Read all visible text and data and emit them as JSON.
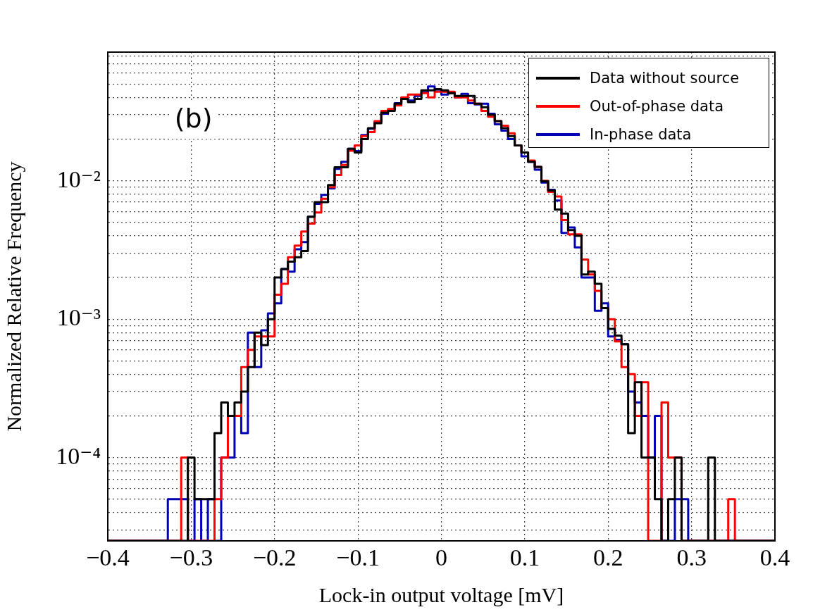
{
  "chart_data": {
    "type": "histogram",
    "xlabel": "Lock-in output voltage [mV]",
    "ylabel": "Normalized Relative Frequency",
    "annotations": [
      "(b)"
    ],
    "log": "y",
    "grid": true,
    "legend": "top right",
    "xlim": [
      -0.4,
      0.4
    ],
    "xticks": [
      {
        "value": -0.4,
        "label": "−0.4"
      },
      {
        "value": -0.3,
        "label": "−0.3"
      },
      {
        "value": -0.2,
        "label": "−0.2"
      },
      {
        "value": -0.1,
        "label": "−0.1"
      },
      {
        "value": 0,
        "label": "0"
      },
      {
        "value": 0.1,
        "label": "0.1"
      },
      {
        "value": 0.2,
        "label": "0.2"
      },
      {
        "value": 0.3,
        "label": "0.3"
      },
      {
        "value": 0.4,
        "label": "0.4"
      }
    ],
    "ylim": [
      2.5e-05,
      0.085
    ],
    "yticks": [
      {
        "value": 3e-05,
        "label": null
      },
      {
        "value": 4e-05,
        "label": null
      },
      {
        "value": 5e-05,
        "label": null
      },
      {
        "value": 6e-05,
        "label": null
      },
      {
        "value": 7e-05,
        "label": null
      },
      {
        "value": 8e-05,
        "label": null
      },
      {
        "value": 9e-05,
        "label": null
      },
      {
        "value": 0.0001,
        "label": "10⁻⁴"
      },
      {
        "value": 0.0002,
        "label": null
      },
      {
        "value": 0.0003,
        "label": null
      },
      {
        "value": 0.0004,
        "label": null
      },
      {
        "value": 0.0005,
        "label": null
      },
      {
        "value": 0.0006,
        "label": null
      },
      {
        "value": 0.0007,
        "label": null
      },
      {
        "value": 0.0008,
        "label": null
      },
      {
        "value": 0.0009,
        "label": null
      },
      {
        "value": 0.001,
        "label": "10⁻³"
      },
      {
        "value": 0.002,
        "label": null
      },
      {
        "value": 0.003,
        "label": null
      },
      {
        "value": 0.004,
        "label": null
      },
      {
        "value": 0.005,
        "label": null
      },
      {
        "value": 0.006,
        "label": null
      },
      {
        "value": 0.007,
        "label": null
      },
      {
        "value": 0.008,
        "label": null
      },
      {
        "value": 0.009,
        "label": null
      },
      {
        "value": 0.01,
        "label": "10⁻²"
      },
      {
        "value": 0.02,
        "label": null
      },
      {
        "value": 0.03,
        "label": null
      },
      {
        "value": 0.04,
        "label": null
      },
      {
        "value": 0.05,
        "label": null
      },
      {
        "value": 0.06,
        "label": null
      },
      {
        "value": 0.07,
        "label": null
      },
      {
        "value": 0.08,
        "label": null
      }
    ],
    "bins": [
      -0.4,
      -0.392,
      -0.384,
      -0.376,
      -0.368,
      -0.36,
      -0.352,
      -0.344,
      -0.336,
      -0.328,
      -0.32,
      -0.312,
      -0.304,
      -0.296,
      -0.288,
      -0.28,
      -0.272,
      -0.264,
      -0.256,
      -0.248,
      -0.24,
      -0.232,
      -0.224,
      -0.216,
      -0.208,
      -0.2,
      -0.192,
      -0.184,
      -0.176,
      -0.168,
      -0.16,
      -0.152,
      -0.144,
      -0.136,
      -0.128,
      -0.12,
      -0.112,
      -0.104,
      -0.096,
      -0.088,
      -0.08,
      -0.072,
      -0.064,
      -0.056,
      -0.048,
      -0.04,
      -0.032,
      -0.024,
      -0.016,
      -0.008,
      0,
      0.008,
      0.016,
      0.024,
      0.032,
      0.04,
      0.048,
      0.056,
      0.064,
      0.072,
      0.08,
      0.088,
      0.096,
      0.104,
      0.112,
      0.12,
      0.128,
      0.136,
      0.144,
      0.152,
      0.16,
      0.168,
      0.176,
      0.184,
      0.192,
      0.2,
      0.208,
      0.216,
      0.224,
      0.232,
      0.24,
      0.248,
      0.256,
      0.264,
      0.272,
      0.28,
      0.288,
      0.296,
      0.304,
      0.312,
      0.32,
      0.328,
      0.336,
      0.344,
      0.352,
      0.36,
      0.368,
      0.376,
      0.384,
      0.392,
      0.4
    ],
    "series": [
      {
        "name": "Data without source",
        "color": "#000000",
        "values": [
          null,
          null,
          null,
          null,
          null,
          null,
          null,
          null,
          null,
          null,
          null,
          null,
          0.0001,
          5e-05,
          5e-05,
          5e-05,
          0.00015,
          0.00025,
          0.0002,
          0.00025,
          0.0003,
          0.00045,
          0.0008,
          0.00065,
          0.001,
          0.002,
          0.0023,
          0.0026,
          0.0028,
          0.0031,
          0.0055,
          0.007,
          0.007,
          0.0093,
          0.0125,
          0.0125,
          0.017,
          0.016,
          0.02,
          0.024,
          0.026,
          0.031,
          0.032,
          0.036,
          0.039,
          0.037,
          0.039,
          0.045,
          0.045,
          0.046,
          0.045,
          0.043,
          0.041,
          0.041,
          0.041,
          0.036,
          0.034,
          0.03,
          0.027,
          0.024,
          0.021,
          0.018,
          0.016,
          0.0137,
          0.0126,
          0.0099,
          0.0085,
          0.0062,
          0.0058,
          0.0044,
          0.004,
          0.0021,
          0.0022,
          0.0018,
          0.0012,
          0.00085,
          0.00076,
          0.00066,
          0.00015,
          0.00035,
          0.0001,
          0.0001,
          5e-05,
          null,
          5e-05,
          0.0001,
          null,
          null,
          null,
          null,
          0.0001,
          null,
          null,
          null,
          null,
          null,
          null,
          null,
          null,
          null
        ]
      },
      {
        "name": "Out-of-phase data",
        "color": "#ff0000",
        "values": [
          null,
          null,
          null,
          null,
          null,
          null,
          null,
          null,
          null,
          null,
          null,
          0.0001,
          null,
          null,
          null,
          null,
          5e-05,
          0.0001,
          0.0002,
          0.0002,
          0.00045,
          0.0006,
          0.00075,
          0.00075,
          0.00075,
          0.0015,
          0.0018,
          0.0028,
          0.0034,
          0.0043,
          0.0049,
          0.0059,
          0.0074,
          0.009,
          0.011,
          0.013,
          0.0165,
          0.018,
          0.021,
          0.0225,
          0.027,
          0.032,
          0.033,
          0.035,
          0.04,
          0.042,
          0.042,
          0.043,
          0.04,
          0.044,
          0.044,
          0.044,
          0.04,
          0.04,
          0.038,
          0.036,
          0.032,
          0.029,
          0.027,
          0.025,
          0.022,
          0.018,
          0.016,
          0.014,
          0.0126,
          0.01,
          0.0083,
          0.0077,
          0.0052,
          0.0041,
          0.0041,
          0.0027,
          0.0021,
          0.0016,
          0.0012,
          0.001,
          0.00069,
          0.00045,
          0.0004,
          0.0002,
          0.00035,
          null,
          null,
          0.00025,
          0.0001,
          0.0001,
          null,
          null,
          null,
          null,
          null,
          null,
          null,
          5e-05,
          null,
          null,
          null,
          null,
          null,
          null
        ]
      },
      {
        "name": "In-phase data",
        "color": "#0000b4",
        "values": [
          null,
          null,
          null,
          null,
          null,
          null,
          null,
          null,
          null,
          5e-05,
          5e-05,
          5e-05,
          null,
          5e-05,
          null,
          5e-05,
          null,
          0.0001,
          0.0001,
          0.0002,
          0.00015,
          0.0008,
          0.00045,
          0.00083,
          0.0011,
          0.0013,
          0.0023,
          0.0022,
          0.0032,
          0.0036,
          0.0055,
          0.0068,
          0.0079,
          0.0088,
          0.0122,
          0.0137,
          0.017,
          0.0164,
          0.0214,
          0.0238,
          0.0268,
          0.0305,
          0.0324,
          0.0364,
          0.039,
          0.038,
          0.041,
          0.0434,
          0.048,
          0.0455,
          0.042,
          0.043,
          0.04,
          0.0425,
          0.0364,
          0.0356,
          0.036,
          0.0305,
          0.0256,
          0.023,
          0.02,
          0.018,
          0.015,
          0.0137,
          0.012,
          0.0097,
          0.0086,
          0.0072,
          0.0042,
          0.0046,
          0.0033,
          0.002,
          0.002,
          0.00115,
          0.0013,
          0.00075,
          0.00071,
          0.00066,
          0.0003,
          0.00025,
          0.0002,
          0.0001,
          0.0002,
          null,
          null,
          5e-05,
          5e-05,
          null,
          null,
          null,
          null,
          null,
          null,
          null,
          null,
          null,
          null,
          null,
          null,
          null
        ]
      }
    ]
  }
}
